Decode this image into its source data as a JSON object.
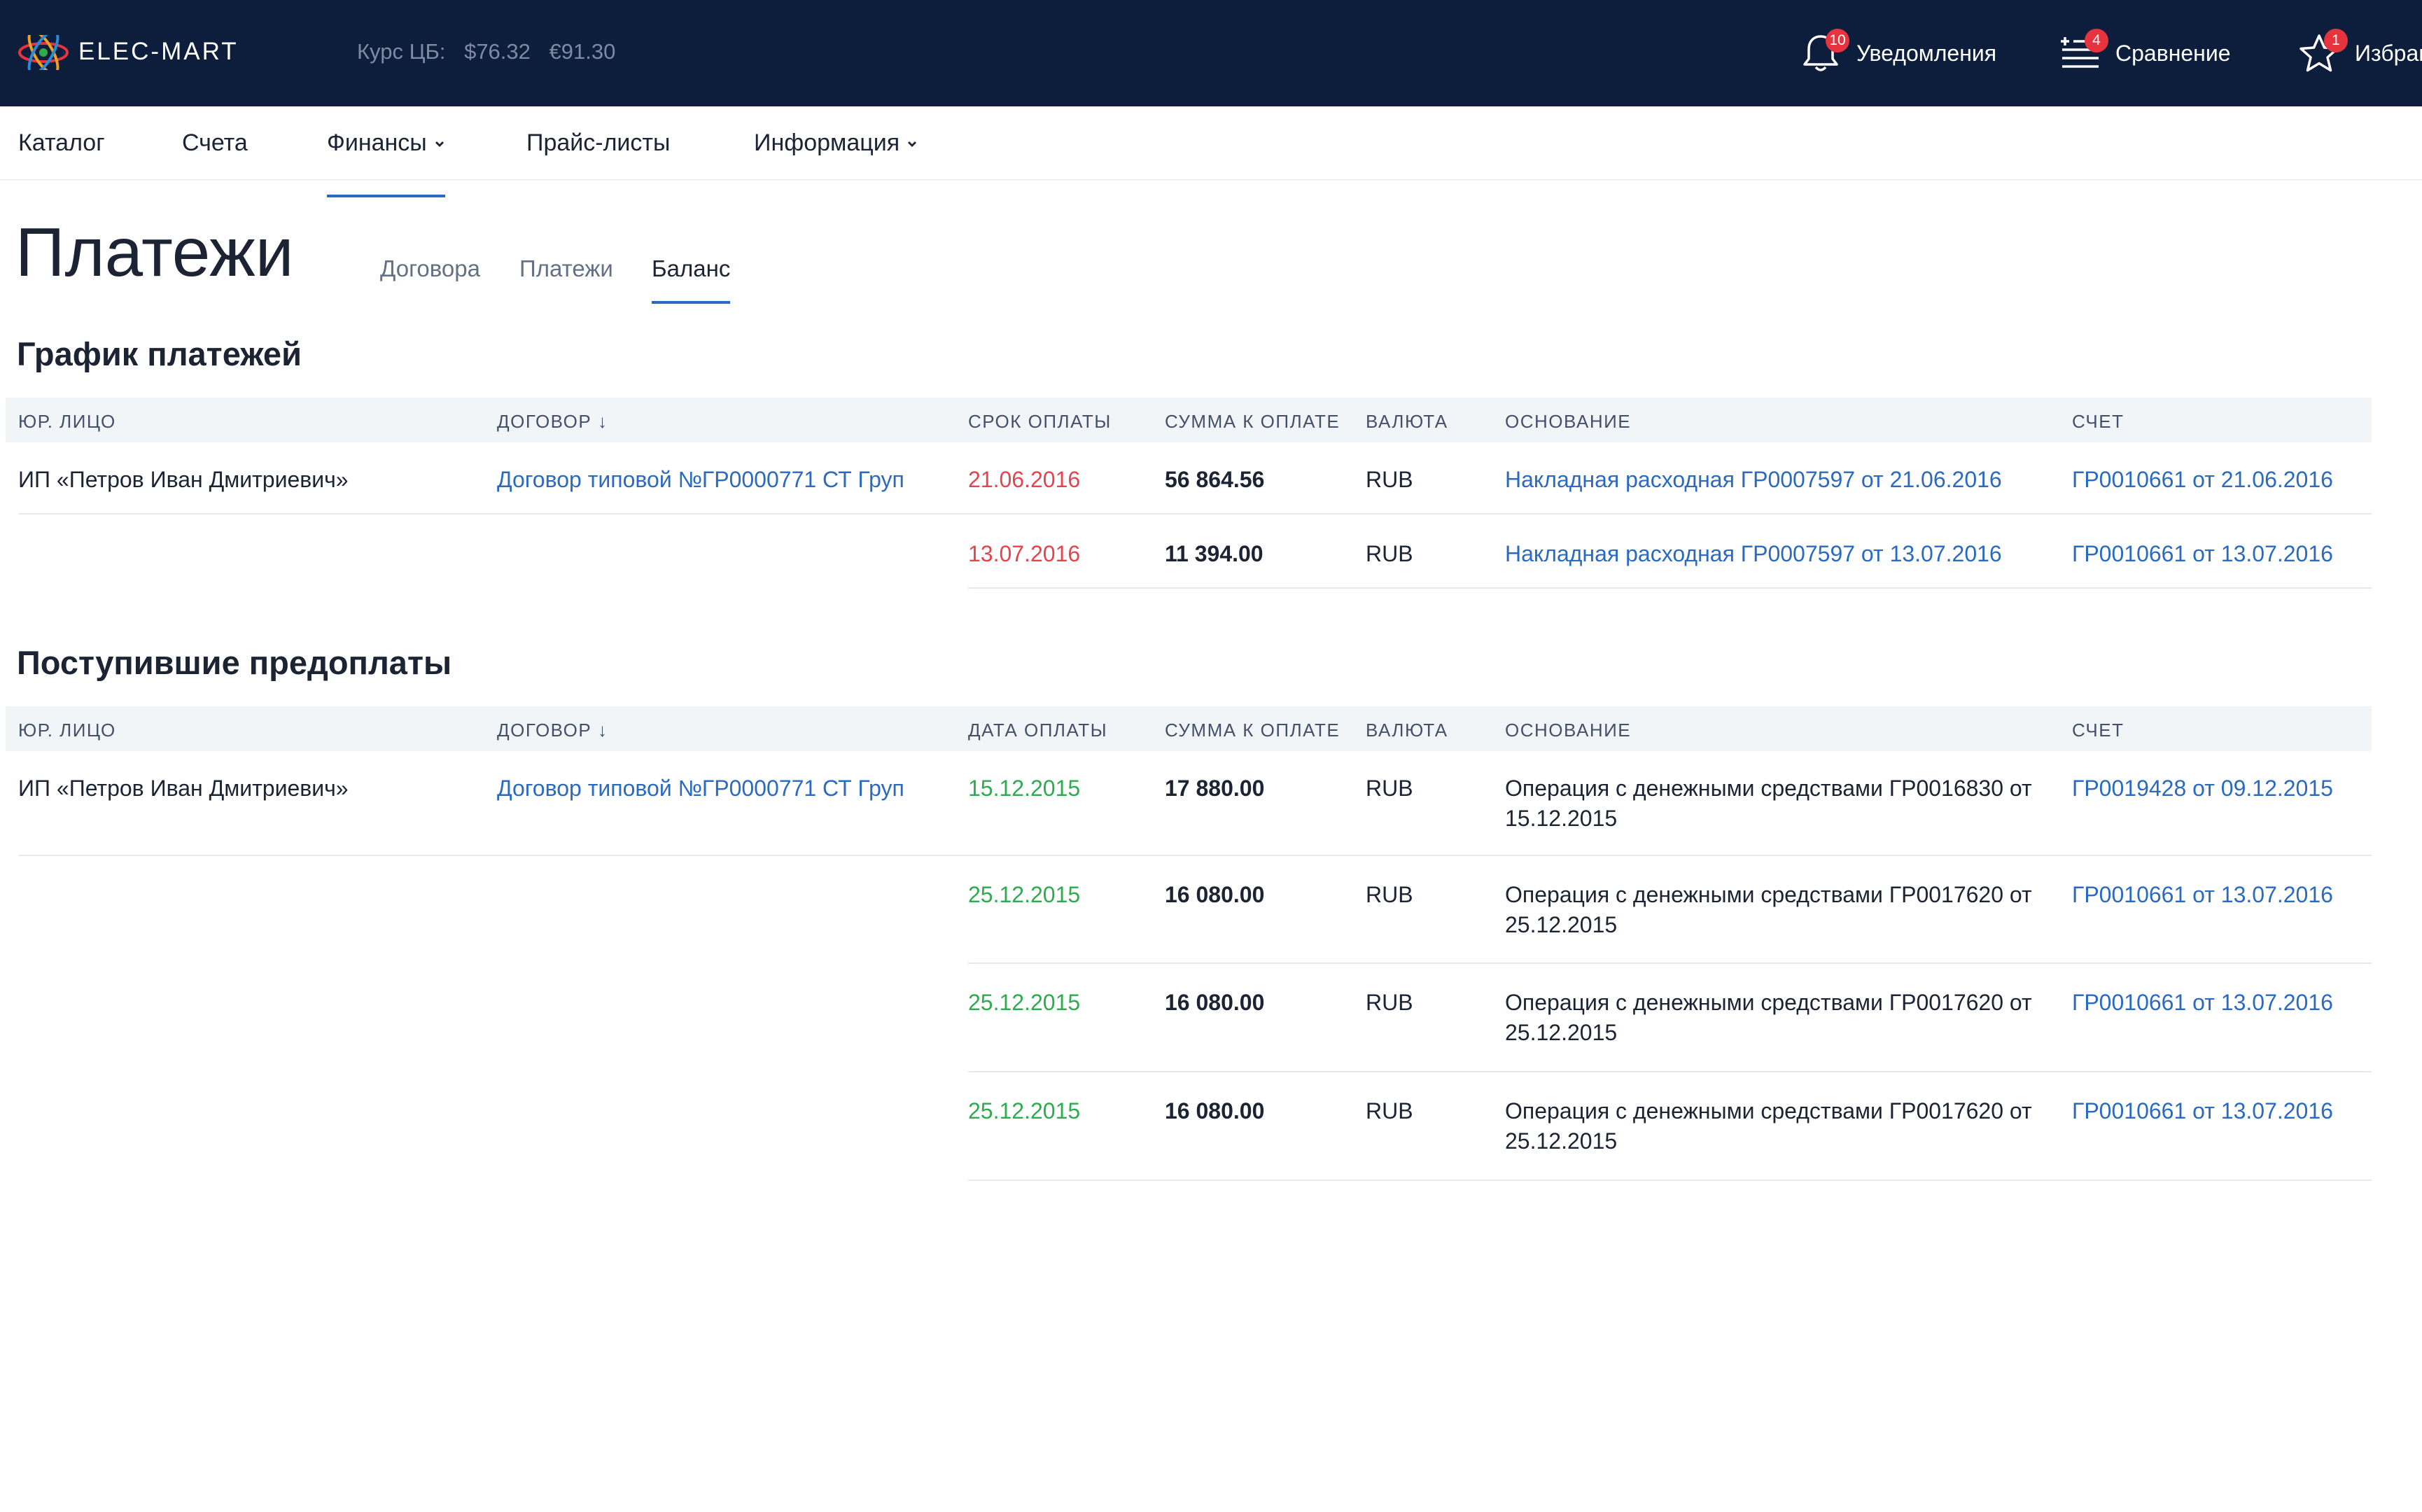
{
  "app": {
    "brand": "ELEC-MART"
  },
  "rates": {
    "label": "Курс ЦБ:",
    "usd": "$76.32",
    "eur": "€91.30"
  },
  "tools": [
    {
      "icon": "bell-icon",
      "label": "Уведомления",
      "count": "10"
    },
    {
      "icon": "compare-list-icon",
      "label": "Сравнение",
      "count": "4"
    },
    {
      "icon": "star-icon",
      "label": "Избранное",
      "count": "1"
    }
  ],
  "nav": [
    {
      "label": "Каталог"
    },
    {
      "label": "Счета"
    },
    {
      "label": "Финансы",
      "dropdown": true,
      "active": true
    },
    {
      "label": "Прайс-листы"
    },
    {
      "label": "Информация",
      "dropdown": true
    }
  ],
  "page": {
    "title": "Платежи",
    "tabs": [
      {
        "label": "Договора"
      },
      {
        "label": "Платежи"
      },
      {
        "label": "Баланс",
        "active": true
      }
    ]
  },
  "schedule": {
    "title": "График платежей",
    "columns": [
      "ЮР. ЛИЦО",
      "ДОГОВОР ↓",
      "СРОК ОПЛАТЫ",
      "СУММА К ОПЛАТЕ",
      "ВАЛЮТА",
      "ОСНОВАНИЕ",
      "СЧЕТ"
    ],
    "rows": [
      {
        "entity": "ИП «Петров Иван Дмитриевич»",
        "contract": "Договор типовой №ГР0000771 СТ Груп",
        "date": "21.06.2016",
        "amount": "56 864.56",
        "currency": "RUB",
        "basis": "Накладная расходная ГР0007597 от 21.06.2016",
        "invoice": "ГР0010661 от 21.06.2016"
      },
      {
        "entity": "",
        "contract": "",
        "date": "13.07.2016",
        "amount": "11 394.00",
        "currency": "RUB",
        "basis": "Накладная расходная ГР0007597 от 13.07.2016",
        "invoice": "ГР0010661 от 13.07.2016"
      }
    ]
  },
  "prepayments": {
    "title": "Поступившие предоплаты",
    "columns": [
      "ЮР. ЛИЦО",
      "ДОГОВОР ↓",
      "ДАТА ОПЛАТЫ",
      "СУММА К ОПЛАТЕ",
      "ВАЛЮТА",
      "ОСНОВАНИЕ",
      "СЧЕТ"
    ],
    "rows": [
      {
        "entity": "ИП «Петров Иван Дмитриевич»",
        "contract": "Договор типовой №ГР0000771 СТ Груп",
        "date": "15.12.2015",
        "amount": "17 880.00",
        "currency": "RUB",
        "basis": "Операция с денежными средствами ГР0016830 от 15.12.2015",
        "invoice": "ГР0019428 от 09.12.2015"
      },
      {
        "entity": "",
        "contract": "",
        "date": "25.12.2015",
        "amount": "16 080.00",
        "currency": "RUB",
        "basis": "Операция с денежными средствами ГР0017620 от 25.12.2015",
        "invoice": "ГР0010661 от 13.07.2016"
      },
      {
        "entity": "",
        "contract": "",
        "date": "25.12.2015",
        "amount": "16 080.00",
        "currency": "RUB",
        "basis": "Операция с денежными средствами ГР0017620 от 25.12.2015",
        "invoice": "ГР0010661 от 13.07.2016"
      },
      {
        "entity": "",
        "contract": "",
        "date": "25.12.2015",
        "amount": "16 080.00",
        "currency": "RUB",
        "basis": "Операция с денежными средствами ГР0017620 от 25.12.2015",
        "invoice": "ГР0010661 от 13.07.2016"
      }
    ]
  },
  "colors": {
    "header_bg": "#0c1e3c",
    "accent": "#2a6ac0",
    "overdue": "#e5444d",
    "paid": "#2eab4f",
    "badge": "#e5343d"
  }
}
